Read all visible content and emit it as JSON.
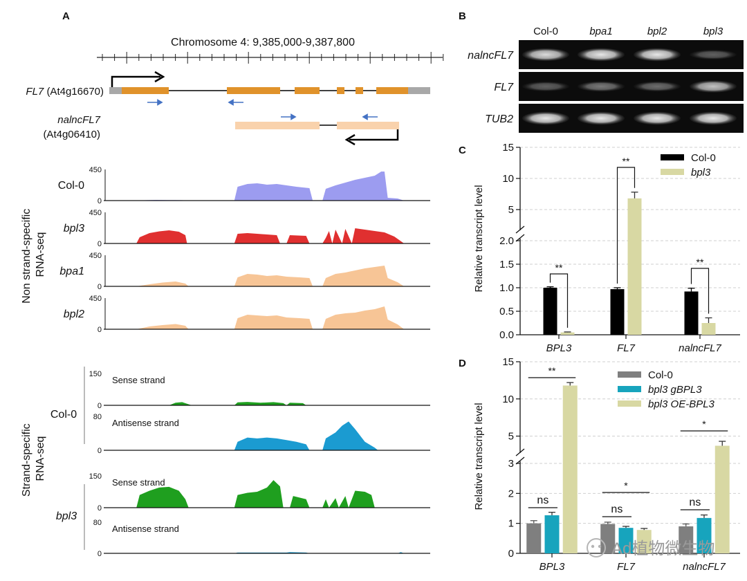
{
  "panel_labels": {
    "a": "A",
    "b": "B",
    "c": "C",
    "d": "D"
  },
  "panel_a": {
    "chromosome_label": "Chromosome 4: 9,385,000-9,387,800",
    "gene1": {
      "name": "FL7",
      "locus": "(At4g16670)"
    },
    "gene2": {
      "name": "nalncFL7",
      "locus": "(At4g06410)"
    },
    "non_strand_group_label": [
      "Non strand-specific",
      "RNA-seq"
    ],
    "strand_group_label": [
      "Strand-specific",
      "RNA-seq"
    ],
    "track_max_label": "450",
    "track_zero_label": "0",
    "strand_max_sense_label": "150",
    "strand_max_antisense_label": "80",
    "sense_strand_label": "Sense strand",
    "antisense_strand_label": "Antisense strand",
    "tracks": [
      {
        "key": "col0",
        "sample": "Col-0",
        "italic": false,
        "color": "#9c9cf0",
        "profile": [
          [
            0.1,
            0
          ],
          [
            0.13,
            6
          ],
          [
            0.16,
            10
          ],
          [
            0.2,
            8
          ],
          [
            0.24,
            6
          ],
          [
            0.26,
            0
          ],
          [
            0.4,
            0
          ],
          [
            0.41,
            200
          ],
          [
            0.44,
            240
          ],
          [
            0.47,
            250
          ],
          [
            0.5,
            230
          ],
          [
            0.53,
            240
          ],
          [
            0.56,
            220
          ],
          [
            0.59,
            200
          ],
          [
            0.61,
            190
          ],
          [
            0.63,
            180
          ],
          [
            0.64,
            0
          ],
          [
            0.67,
            0
          ],
          [
            0.68,
            170
          ],
          [
            0.71,
            220
          ],
          [
            0.74,
            260
          ],
          [
            0.77,
            300
          ],
          [
            0.8,
            330
          ],
          [
            0.83,
            360
          ],
          [
            0.85,
            420
          ],
          [
            0.86,
            420
          ],
          [
            0.87,
            40
          ],
          [
            0.9,
            30
          ],
          [
            0.92,
            0
          ]
        ]
      },
      {
        "key": "bpl3",
        "sample": "bpl3",
        "italic": true,
        "color": "#e03030",
        "profile": [
          [
            0.1,
            0
          ],
          [
            0.11,
            90
          ],
          [
            0.14,
            150
          ],
          [
            0.17,
            175
          ],
          [
            0.2,
            190
          ],
          [
            0.23,
            170
          ],
          [
            0.25,
            120
          ],
          [
            0.255,
            0
          ],
          [
            0.4,
            0
          ],
          [
            0.41,
            140
          ],
          [
            0.44,
            150
          ],
          [
            0.47,
            140
          ],
          [
            0.5,
            130
          ],
          [
            0.53,
            120
          ],
          [
            0.54,
            0
          ],
          [
            0.56,
            0
          ],
          [
            0.57,
            120
          ],
          [
            0.62,
            110
          ],
          [
            0.63,
            0
          ],
          [
            0.67,
            0
          ],
          [
            0.68,
            80
          ],
          [
            0.69,
            180
          ],
          [
            0.7,
            0
          ],
          [
            0.71,
            200
          ],
          [
            0.73,
            0
          ],
          [
            0.74,
            210
          ],
          [
            0.76,
            0
          ],
          [
            0.77,
            220
          ],
          [
            0.8,
            200
          ],
          [
            0.83,
            180
          ],
          [
            0.86,
            160
          ],
          [
            0.89,
            100
          ],
          [
            0.92,
            0
          ]
        ]
      },
      {
        "key": "bpa1",
        "sample": "bpa1",
        "italic": true,
        "color": "#f7c596",
        "profile": [
          [
            0.1,
            0
          ],
          [
            0.14,
            30
          ],
          [
            0.18,
            55
          ],
          [
            0.22,
            70
          ],
          [
            0.25,
            40
          ],
          [
            0.26,
            0
          ],
          [
            0.4,
            0
          ],
          [
            0.41,
            130
          ],
          [
            0.44,
            180
          ],
          [
            0.47,
            170
          ],
          [
            0.5,
            150
          ],
          [
            0.53,
            160
          ],
          [
            0.56,
            140
          ],
          [
            0.6,
            130
          ],
          [
            0.63,
            120
          ],
          [
            0.64,
            0
          ],
          [
            0.67,
            0
          ],
          [
            0.68,
            120
          ],
          [
            0.71,
            180
          ],
          [
            0.74,
            200
          ],
          [
            0.77,
            230
          ],
          [
            0.8,
            260
          ],
          [
            0.83,
            280
          ],
          [
            0.86,
            300
          ],
          [
            0.87,
            120
          ],
          [
            0.9,
            60
          ],
          [
            0.92,
            0
          ]
        ]
      },
      {
        "key": "bpl2",
        "sample": "bpl2",
        "italic": true,
        "color": "#f7c596",
        "profile": [
          [
            0.1,
            0
          ],
          [
            0.14,
            40
          ],
          [
            0.18,
            60
          ],
          [
            0.22,
            75
          ],
          [
            0.25,
            50
          ],
          [
            0.26,
            0
          ],
          [
            0.4,
            0
          ],
          [
            0.41,
            160
          ],
          [
            0.44,
            210
          ],
          [
            0.47,
            200
          ],
          [
            0.5,
            190
          ],
          [
            0.53,
            200
          ],
          [
            0.56,
            170
          ],
          [
            0.6,
            160
          ],
          [
            0.63,
            150
          ],
          [
            0.64,
            0
          ],
          [
            0.67,
            0
          ],
          [
            0.68,
            150
          ],
          [
            0.71,
            210
          ],
          [
            0.74,
            230
          ],
          [
            0.77,
            240
          ],
          [
            0.8,
            270
          ],
          [
            0.83,
            290
          ],
          [
            0.86,
            330
          ],
          [
            0.87,
            140
          ],
          [
            0.9,
            70
          ],
          [
            0.92,
            0
          ]
        ]
      }
    ],
    "strand_tracks": [
      {
        "key": "col0_sense",
        "sample": "Col-0",
        "strand": "sense",
        "color": "#1f9f1f",
        "profile": [
          [
            0.1,
            0
          ],
          [
            0.2,
            0
          ],
          [
            0.22,
            12
          ],
          [
            0.24,
            15
          ],
          [
            0.26,
            5
          ],
          [
            0.27,
            0
          ],
          [
            0.4,
            0
          ],
          [
            0.41,
            14
          ],
          [
            0.44,
            16
          ],
          [
            0.48,
            12
          ],
          [
            0.52,
            15
          ],
          [
            0.55,
            10
          ],
          [
            0.56,
            0
          ],
          [
            0.57,
            12
          ],
          [
            0.61,
            10
          ],
          [
            0.62,
            0
          ],
          [
            0.92,
            0
          ]
        ]
      },
      {
        "key": "col0_antisense",
        "sample": "Col-0",
        "strand": "antisense",
        "color": "#1b9bd1",
        "profile": [
          [
            0.1,
            0
          ],
          [
            0.4,
            0
          ],
          [
            0.41,
            20
          ],
          [
            0.44,
            30
          ],
          [
            0.47,
            28
          ],
          [
            0.5,
            30
          ],
          [
            0.53,
            28
          ],
          [
            0.56,
            24
          ],
          [
            0.59,
            20
          ],
          [
            0.62,
            14
          ],
          [
            0.63,
            0
          ],
          [
            0.67,
            0
          ],
          [
            0.68,
            28
          ],
          [
            0.71,
            42
          ],
          [
            0.73,
            58
          ],
          [
            0.75,
            68
          ],
          [
            0.77,
            50
          ],
          [
            0.8,
            20
          ],
          [
            0.83,
            6
          ],
          [
            0.84,
            0
          ],
          [
            0.92,
            0
          ]
        ]
      },
      {
        "key": "bpl3_sense",
        "sample": "bpl3",
        "strand": "sense",
        "color": "#1f9f1f",
        "profile": [
          [
            0.1,
            0
          ],
          [
            0.11,
            60
          ],
          [
            0.14,
            80
          ],
          [
            0.17,
            95
          ],
          [
            0.2,
            98
          ],
          [
            0.23,
            80
          ],
          [
            0.25,
            40
          ],
          [
            0.26,
            0
          ],
          [
            0.4,
            0
          ],
          [
            0.41,
            60
          ],
          [
            0.44,
            70
          ],
          [
            0.47,
            75
          ],
          [
            0.5,
            95
          ],
          [
            0.52,
            130
          ],
          [
            0.54,
            100
          ],
          [
            0.55,
            0
          ],
          [
            0.57,
            0
          ],
          [
            0.58,
            55
          ],
          [
            0.62,
            40
          ],
          [
            0.63,
            0
          ],
          [
            0.67,
            0
          ],
          [
            0.68,
            40
          ],
          [
            0.69,
            0
          ],
          [
            0.71,
            45
          ],
          [
            0.72,
            0
          ],
          [
            0.74,
            55
          ],
          [
            0.75,
            0
          ],
          [
            0.77,
            80
          ],
          [
            0.8,
            75
          ],
          [
            0.82,
            60
          ],
          [
            0.83,
            0
          ],
          [
            0.92,
            0
          ]
        ]
      },
      {
        "key": "bpl3_antisense",
        "sample": "bpl3",
        "strand": "antisense",
        "color": "#1b9bd1",
        "profile": [
          [
            0.1,
            0
          ],
          [
            0.4,
            0
          ],
          [
            0.41,
            2
          ],
          [
            0.56,
            2
          ],
          [
            0.57,
            3
          ],
          [
            0.62,
            2
          ],
          [
            0.63,
            0
          ],
          [
            0.9,
            0
          ],
          [
            0.91,
            3
          ],
          [
            0.92,
            0
          ]
        ]
      }
    ]
  },
  "panel_b": {
    "lanes": [
      {
        "label": "Col-0",
        "italic": false
      },
      {
        "label": "bpa1",
        "italic": true
      },
      {
        "label": "bpl2",
        "italic": true
      },
      {
        "label": "bpl3",
        "italic": true
      }
    ],
    "rows": [
      {
        "label": "nalncFL7",
        "bands": [
          0.85,
          0.9,
          0.9,
          0.35
        ]
      },
      {
        "label": "FL7",
        "bands": [
          0.35,
          0.45,
          0.4,
          0.75
        ]
      },
      {
        "label": "TUB2",
        "bands": [
          0.9,
          0.9,
          0.9,
          0.9
        ]
      }
    ]
  },
  "chart_data": [
    {
      "panel": "C",
      "type": "bar",
      "ylabel": "Relative transcript level",
      "categories": [
        "BPL3",
        "FL7",
        "nalncFL7"
      ],
      "series": [
        {
          "name": "Col-0",
          "color": "#000000",
          "values": [
            1.0,
            0.97,
            0.92
          ],
          "errors": [
            0.02,
            0.03,
            0.07
          ]
        },
        {
          "name": "bpl3",
          "color": "#d8d8a3",
          "values": [
            0.05,
            6.8,
            0.25
          ],
          "errors": [
            0.01,
            1.0,
            0.11
          ]
        }
      ],
      "y_segments": [
        {
          "range": [
            0,
            2.0
          ],
          "ticks": [
            "0.0",
            "0.5",
            "1.0",
            "1.5",
            "2.0"
          ],
          "tick_values": [
            0,
            0.5,
            1.0,
            1.5,
            2.0
          ]
        },
        {
          "range": [
            2.0,
            15
          ],
          "ticks": [
            "5",
            "10",
            "15"
          ],
          "tick_values": [
            5,
            10,
            15
          ]
        }
      ],
      "significance": [
        {
          "category": "BPL3",
          "label": "**"
        },
        {
          "category": "FL7",
          "label": "**"
        },
        {
          "category": "nalncFL7",
          "label": "**"
        }
      ],
      "legend_position": "top-right",
      "grid": true
    },
    {
      "panel": "D",
      "type": "bar",
      "ylabel": "Relative transcript level",
      "categories": [
        "BPL3",
        "FL7",
        "nalncFL7"
      ],
      "series": [
        {
          "name": "Col-0",
          "color": "#7f7f7f",
          "values": [
            1.0,
            0.98,
            0.9
          ],
          "errors": [
            0.09,
            0.06,
            0.08
          ]
        },
        {
          "name": "bpl3 gBPL3",
          "color": "#17a4bd",
          "values": [
            1.27,
            0.85,
            1.18
          ],
          "errors": [
            0.1,
            0.05,
            0.1
          ]
        },
        {
          "name": "bpl3 OE-BPL3",
          "color": "#d8d8a3",
          "values": [
            11.8,
            0.78,
            3.7
          ],
          "errors": [
            0.4,
            0.05,
            0.6
          ]
        }
      ],
      "y_segments": [
        {
          "range": [
            0,
            3
          ],
          "ticks": [
            "0",
            "1",
            "2",
            "3"
          ],
          "tick_values": [
            0,
            1,
            2,
            3
          ]
        },
        {
          "range": [
            3,
            15
          ],
          "ticks": [
            "5",
            "10",
            "15"
          ],
          "tick_values": [
            5,
            10,
            15
          ]
        }
      ],
      "significance": [
        {
          "category": "BPL3",
          "label": "**",
          "comparison": "wide"
        },
        {
          "category": "BPL3",
          "label": "ns",
          "comparison": "pair"
        },
        {
          "category": "FL7",
          "label": "*",
          "comparison": "wide"
        },
        {
          "category": "FL7",
          "label": "ns",
          "comparison": "pair"
        },
        {
          "category": "nalncFL7",
          "label": "*",
          "comparison": "wide"
        },
        {
          "category": "nalncFL7",
          "label": "ns",
          "comparison": "pair"
        }
      ],
      "legend_position": "top-right",
      "grid": true
    }
  ],
  "watermark": "Ad植物微生物"
}
